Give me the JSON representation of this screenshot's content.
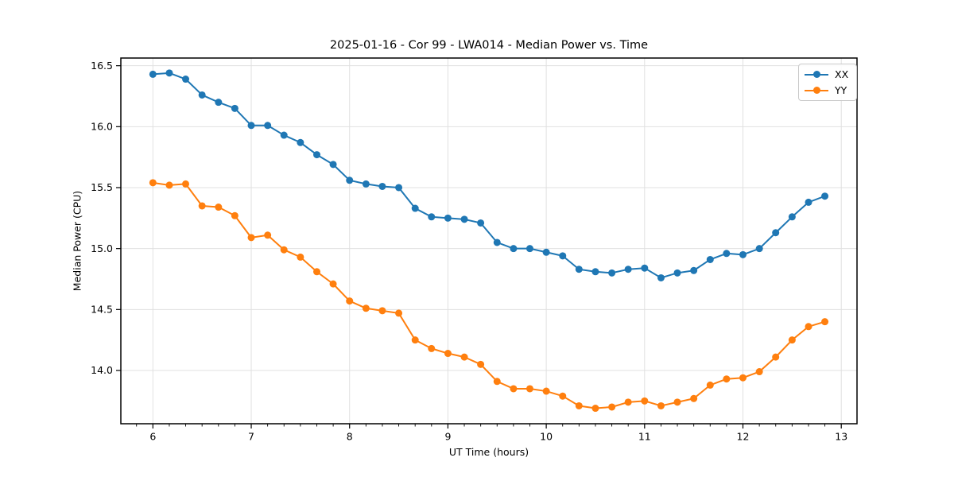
{
  "figure": {
    "background": "#ffffff"
  },
  "chart_data": {
    "type": "line",
    "title": "2025-01-16 - Cor 99 - LWA014 - Median Power vs. Time",
    "xlabel": "UT Time (hours)",
    "ylabel": "Median Power (CPU)",
    "grid": true,
    "legend_position": "upper right",
    "marker": "o",
    "xlim": [
      5.674,
      13.16
    ],
    "ylim": [
      13.563,
      16.563
    ],
    "x_major_ticks": [
      6,
      7,
      8,
      9,
      10,
      11,
      12,
      13
    ],
    "x_tick_labels": [
      "6",
      "7",
      "8",
      "9",
      "10",
      "11",
      "12",
      "13"
    ],
    "x_minor_step": 0.166667,
    "y_major_ticks": [
      14.0,
      14.5,
      15.0,
      15.5,
      16.0,
      16.5
    ],
    "y_tick_labels": [
      "14.0",
      "14.5",
      "15.0",
      "15.5",
      "16.0",
      "16.5"
    ],
    "grid_color": "#e0e0e0",
    "spine_color": "#000000",
    "x": [
      6,
      6.167,
      6.333,
      6.5,
      6.667,
      6.833,
      7,
      7.167,
      7.333,
      7.5,
      7.667,
      7.833,
      8,
      8.167,
      8.333,
      8.5,
      8.667,
      8.833,
      9,
      9.167,
      9.333,
      9.5,
      9.667,
      9.833,
      10,
      10.167,
      10.333,
      10.5,
      10.667,
      10.833,
      11,
      11.167,
      11.333,
      11.5,
      11.667,
      11.833,
      12,
      12.167,
      12.333,
      12.5,
      12.667,
      12.833
    ],
    "series": [
      {
        "name": "XX",
        "color": "#1f77b4",
        "values": [
          16.43,
          16.44,
          16.39,
          16.26,
          16.2,
          16.15,
          16.01,
          16.01,
          15.93,
          15.87,
          15.77,
          15.69,
          15.56,
          15.53,
          15.51,
          15.5,
          15.33,
          15.26,
          15.25,
          15.24,
          15.21,
          15.05,
          15.0,
          15.0,
          14.97,
          14.94,
          14.83,
          14.81,
          14.8,
          14.83,
          14.84,
          14.76,
          14.8,
          14.82,
          14.91,
          14.96,
          14.95,
          15.0,
          15.13,
          15.26,
          15.38,
          15.43
        ]
      },
      {
        "name": "YY",
        "color": "#ff7f0e",
        "values": [
          15.54,
          15.52,
          15.53,
          15.35,
          15.34,
          15.27,
          15.09,
          15.11,
          14.99,
          14.93,
          14.81,
          14.71,
          14.57,
          14.51,
          14.49,
          14.47,
          14.25,
          14.18,
          14.14,
          14.11,
          14.05,
          13.91,
          13.85,
          13.85,
          13.83,
          13.79,
          13.71,
          13.69,
          13.7,
          13.74,
          13.75,
          13.71,
          13.74,
          13.77,
          13.88,
          13.93,
          13.94,
          13.99,
          14.11,
          14.25,
          14.36,
          14.4
        ]
      }
    ]
  },
  "legend": {
    "items": [
      {
        "label": "XX",
        "color": "#1f77b4"
      },
      {
        "label": "YY",
        "color": "#ff7f0e"
      }
    ]
  }
}
